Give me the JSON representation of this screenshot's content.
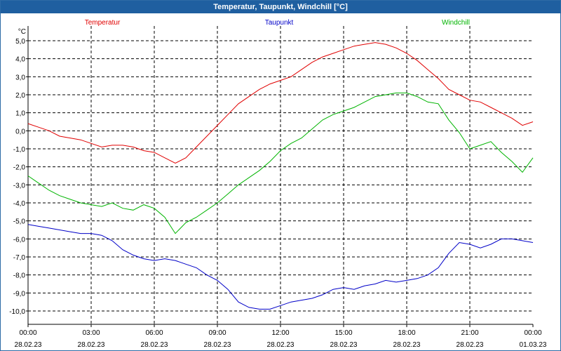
{
  "window": {
    "title": "Temperatur, Taupunkt, Windchill [°C]"
  },
  "colors": {
    "temperature": "#e00000",
    "dewpoint": "#0000c8",
    "windchill": "#00b400",
    "grid": "#000000",
    "axis": "#000000",
    "titlebar": "#1f5fa0"
  },
  "chart_data": {
    "type": "line",
    "title": "Temperatur, Taupunkt, Windchill [°C]",
    "ylabel": "°C",
    "xlabel": "",
    "xlim": [
      0,
      24
    ],
    "ylim": [
      -11,
      5.5
    ],
    "yticks": [
      5,
      4,
      3,
      2,
      1,
      0,
      -1,
      -2,
      -3,
      -4,
      -5,
      -6,
      -7,
      -8,
      -9,
      -10
    ],
    "ytick_labels": [
      "5,0",
      "4,0",
      "3,0",
      "2,0",
      "1,0",
      "0,0",
      "-1,0",
      "-2,0",
      "-3,0",
      "-4,0",
      "-5,0",
      "-6,0",
      "-7,0",
      "-8,0",
      "-9,0",
      "-10,0"
    ],
    "xticks": [
      {
        "x": 0,
        "time": "00:00",
        "date": "28.02.23"
      },
      {
        "x": 3,
        "time": "03:00",
        "date": "28.02.23"
      },
      {
        "x": 6,
        "time": "06:00",
        "date": "28.02.23"
      },
      {
        "x": 9,
        "time": "09:00",
        "date": "28.02.23"
      },
      {
        "x": 12,
        "time": "12:00",
        "date": "28.02.23"
      },
      {
        "x": 15,
        "time": "15:00",
        "date": "28.02.23"
      },
      {
        "x": 18,
        "time": "18:00",
        "date": "28.02.23"
      },
      {
        "x": 21,
        "time": "21:00",
        "date": "28.02.23"
      },
      {
        "x": 24,
        "time": "00:00",
        "date": "01.03.23"
      }
    ],
    "grid": true,
    "series": [
      {
        "name": "Temperatur",
        "color": "#e00000",
        "legend_position": "top-left",
        "x": [
          0,
          0.5,
          1,
          1.5,
          2,
          2.5,
          3,
          3.5,
          4,
          4.5,
          5,
          5.5,
          6,
          6.5,
          7,
          7.5,
          8,
          8.5,
          9,
          9.5,
          10,
          10.5,
          11,
          11.5,
          12,
          12.5,
          13,
          13.5,
          14,
          14.5,
          15,
          15.5,
          16,
          16.5,
          17,
          17.5,
          18,
          18.5,
          19,
          19.5,
          20,
          20.5,
          21,
          21.5,
          22,
          22.5,
          23,
          23.5,
          24
        ],
        "values": [
          0.4,
          0.2,
          0.0,
          -0.3,
          -0.4,
          -0.5,
          -0.7,
          -0.9,
          -0.8,
          -0.8,
          -0.9,
          -1.1,
          -1.2,
          -1.5,
          -1.8,
          -1.5,
          -0.9,
          -0.3,
          0.3,
          0.9,
          1.5,
          1.9,
          2.3,
          2.6,
          2.8,
          3.0,
          3.4,
          3.8,
          4.1,
          4.3,
          4.5,
          4.7,
          4.8,
          4.9,
          4.8,
          4.6,
          4.3,
          3.9,
          3.4,
          2.9,
          2.3,
          2.0,
          1.7,
          1.6,
          1.3,
          1.0,
          0.7,
          0.3,
          0.5
        ]
      },
      {
        "name": "Taupunkt",
        "color": "#0000c8",
        "legend_position": "top-center",
        "x": [
          0,
          0.5,
          1,
          1.5,
          2,
          2.5,
          3,
          3.5,
          4,
          4.5,
          5,
          5.5,
          6,
          6.5,
          7,
          7.5,
          8,
          8.5,
          9,
          9.5,
          10,
          10.5,
          11,
          11.5,
          12,
          12.5,
          13,
          13.5,
          14,
          14.5,
          15,
          15.5,
          16,
          16.5,
          17,
          17.5,
          18,
          18.5,
          19,
          19.5,
          20,
          20.5,
          21,
          21.5,
          22,
          22.5,
          23,
          23.5,
          24
        ],
        "values": [
          -5.2,
          -5.3,
          -5.4,
          -5.5,
          -5.6,
          -5.7,
          -5.7,
          -5.8,
          -6.1,
          -6.6,
          -6.9,
          -7.1,
          -7.2,
          -7.1,
          -7.2,
          -7.4,
          -7.6,
          -8.0,
          -8.3,
          -8.8,
          -9.5,
          -9.8,
          -9.9,
          -9.9,
          -9.7,
          -9.5,
          -9.4,
          -9.3,
          -9.1,
          -8.8,
          -8.7,
          -8.8,
          -8.6,
          -8.5,
          -8.3,
          -8.4,
          -8.3,
          -8.2,
          -8.0,
          -7.6,
          -6.8,
          -6.2,
          -6.3,
          -6.5,
          -6.3,
          -6.0,
          -6.0,
          -6.1,
          -6.2
        ]
      },
      {
        "name": "Windchill",
        "color": "#00b400",
        "legend_position": "top-right",
        "x": [
          0,
          0.5,
          1,
          1.5,
          2,
          2.5,
          3,
          3.5,
          4,
          4.5,
          5,
          5.5,
          6,
          6.5,
          7,
          7.5,
          8,
          8.5,
          9,
          9.5,
          10,
          10.5,
          11,
          11.5,
          12,
          12.5,
          13,
          13.5,
          14,
          14.5,
          15,
          15.5,
          16,
          16.5,
          17,
          17.5,
          18,
          18.5,
          19,
          19.5,
          20,
          20.5,
          21,
          21.5,
          22,
          22.5,
          23,
          23.5,
          24
        ],
        "values": [
          -2.5,
          -2.9,
          -3.3,
          -3.6,
          -3.8,
          -4.0,
          -4.1,
          -4.2,
          -4.0,
          -4.3,
          -4.4,
          -4.1,
          -4.3,
          -4.8,
          -5.7,
          -5.1,
          -4.8,
          -4.4,
          -4.0,
          -3.5,
          -3.0,
          -2.6,
          -2.2,
          -1.7,
          -1.1,
          -0.7,
          -0.4,
          0.1,
          0.6,
          0.9,
          1.1,
          1.3,
          1.6,
          1.9,
          2.0,
          2.1,
          2.1,
          1.9,
          1.6,
          1.5,
          0.6,
          -0.1,
          -1.0,
          -0.8,
          -0.6,
          -1.2,
          -1.7,
          -2.3,
          -1.5
        ]
      }
    ]
  }
}
